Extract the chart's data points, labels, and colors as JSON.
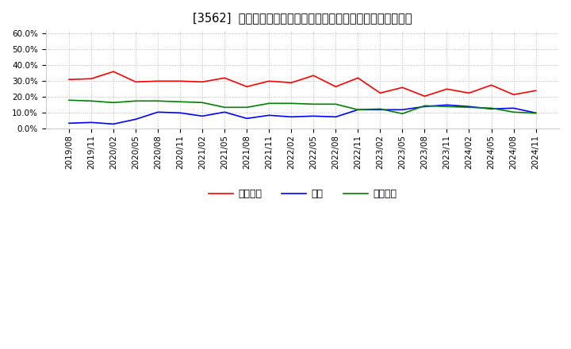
{
  "title": "[3562]  売上債権、在庫、買入債務の総資産に対する比率の推移",
  "ylim": [
    0.0,
    0.62
  ],
  "yticks": [
    0.0,
    0.1,
    0.2,
    0.3,
    0.4,
    0.5,
    0.6
  ],
  "dates": [
    "2019/08",
    "2019/11",
    "2020/02",
    "2020/05",
    "2020/08",
    "2020/11",
    "2021/02",
    "2021/05",
    "2021/08",
    "2021/11",
    "2022/02",
    "2022/05",
    "2022/08",
    "2022/11",
    "2023/02",
    "2023/05",
    "2023/08",
    "2023/11",
    "2024/02",
    "2024/05",
    "2024/08",
    "2024/11"
  ],
  "urikake": [
    0.31,
    0.315,
    0.36,
    0.295,
    0.3,
    0.3,
    0.295,
    0.32,
    0.265,
    0.3,
    0.29,
    0.335,
    0.265,
    0.32,
    0.225,
    0.26,
    0.205,
    0.25,
    0.225,
    0.275,
    0.215,
    0.24
  ],
  "zaiko": [
    0.035,
    0.04,
    0.03,
    0.06,
    0.105,
    0.1,
    0.08,
    0.105,
    0.065,
    0.085,
    0.075,
    0.08,
    0.075,
    0.12,
    0.12,
    0.12,
    0.14,
    0.15,
    0.14,
    0.125,
    0.13,
    0.1
  ],
  "kaiire": [
    0.18,
    0.175,
    0.165,
    0.175,
    0.175,
    0.17,
    0.165,
    0.135,
    0.135,
    0.16,
    0.16,
    0.155,
    0.155,
    0.12,
    0.125,
    0.095,
    0.145,
    0.14,
    0.135,
    0.13,
    0.105,
    0.098
  ],
  "urikake_color": "#ff0000",
  "zaiko_color": "#0000ff",
  "kaiire_color": "#008000",
  "legend_labels": [
    "売上債権",
    "在庫",
    "買入債務"
  ],
  "bg_color": "#ffffff",
  "grid_color": "#bbbbbb",
  "title_fontsize": 10.5,
  "tick_fontsize": 7.5,
  "legend_fontsize": 9
}
